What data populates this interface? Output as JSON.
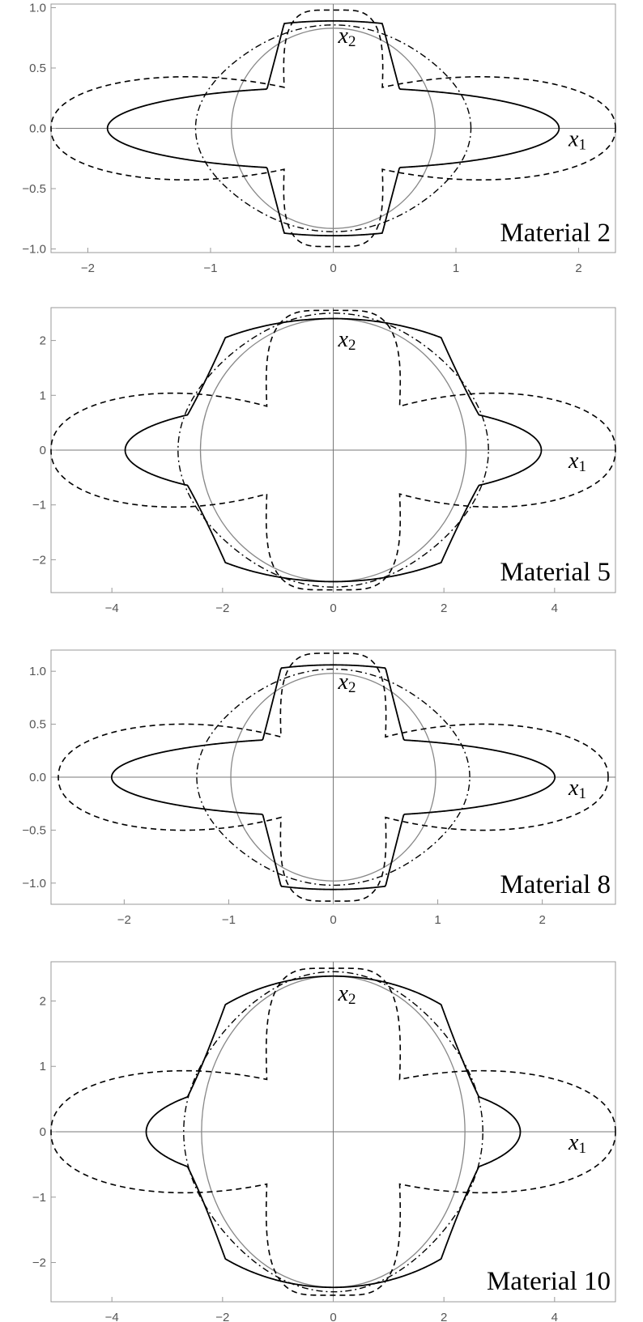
{
  "chart_data": [
    {
      "type": "line",
      "title": "Material 2",
      "xlabel": "x1",
      "ylabel": "x2",
      "xlim": [
        -2.3,
        2.3
      ],
      "ylim": [
        -1.03,
        1.03
      ],
      "xticks": [
        "−2",
        "−1",
        "0",
        "1",
        "2"
      ],
      "yticks": [
        "−1.0",
        "−0.5",
        "0.0",
        "0.5",
        "1.0"
      ],
      "xtick_values": [
        -2,
        -1,
        0,
        1,
        2
      ],
      "ytick_values": [
        -1.0,
        -0.5,
        0.0,
        0.5,
        1.0
      ],
      "series": [
        {
          "style": "gray-circle",
          "radius": 0.83
        },
        {
          "style": "solid",
          "xmax": 1.84,
          "ymax": 0.89,
          "neck": 0.34,
          "waist": 0.4
        },
        {
          "style": "dashed",
          "xmax": 2.3,
          "ymax": 0.98,
          "lobe": 0.49,
          "cusp_x": 0.4,
          "cusp_y": 0.34
        },
        {
          "style": "dashdot",
          "rx": 1.1,
          "ry": 0.84
        }
      ]
    },
    {
      "type": "line",
      "title": "Material 5",
      "xlabel": "x1",
      "ylabel": "x2",
      "xlim": [
        -5.1,
        5.1
      ],
      "ylim": [
        -2.6,
        2.6
      ],
      "xticks": [
        "−4",
        "−2",
        "0",
        "2",
        "4"
      ],
      "yticks": [
        "−2",
        "−1",
        "0",
        "1",
        "2"
      ],
      "xtick_values": [
        -4,
        -2,
        0,
        2,
        4
      ],
      "ytick_values": [
        -2,
        -1,
        0,
        1,
        2
      ],
      "series": [
        {
          "style": "gray-circle",
          "radius": 2.4
        },
        {
          "style": "solid",
          "xmax": 3.76,
          "ymax": 2.4,
          "neck": 0.9,
          "waist": 1.95
        },
        {
          "style": "dashed",
          "xmax": 5.1,
          "ymax": 2.55,
          "lobe": 1.2,
          "cusp_x": 1.2,
          "cusp_y": 0.8
        },
        {
          "style": "dashdot",
          "rx": 2.75,
          "ry": 2.45
        }
      ]
    },
    {
      "type": "line",
      "title": "Material 8",
      "xlabel": "x1",
      "ylabel": "x2",
      "xlim": [
        -2.7,
        2.7
      ],
      "ylim": [
        -1.2,
        1.2
      ],
      "xticks": [
        "−2",
        "−1",
        "0",
        "1",
        "2"
      ],
      "yticks": [
        "−1.0",
        "−0.5",
        "0.0",
        "0.5",
        "1.0"
      ],
      "xtick_values": [
        -2,
        -1,
        0,
        1,
        2
      ],
      "ytick_values": [
        -1.0,
        -0.5,
        0.0,
        0.5,
        1.0
      ],
      "series": [
        {
          "style": "gray-circle",
          "radius": 0.98
        },
        {
          "style": "solid",
          "xmax": 2.12,
          "ymax": 1.06,
          "neck": 0.37,
          "waist": 0.5
        },
        {
          "style": "dashed",
          "xmax": 2.63,
          "ymax": 1.17,
          "lobe": 0.58,
          "cusp_x": 0.5,
          "cusp_y": 0.38
        },
        {
          "style": "dashdot",
          "rx": 1.28,
          "ry": 1.0
        }
      ]
    },
    {
      "type": "line",
      "title": "Material 10",
      "xlabel": "x1",
      "ylabel": "x2",
      "xlim": [
        -5.1,
        5.1
      ],
      "ylim": [
        -2.6,
        2.6
      ],
      "xticks": [
        "−4",
        "−2",
        "0",
        "2",
        "4"
      ],
      "yticks": [
        "−2",
        "−1",
        "0",
        "1",
        "2"
      ],
      "xtick_values": [
        -4,
        -2,
        0,
        2,
        4
      ],
      "ytick_values": [
        -2,
        -1,
        0,
        1,
        2
      ],
      "series": [
        {
          "style": "gray-circle",
          "radius": 2.38
        },
        {
          "style": "solid",
          "xmax": 3.38,
          "ymax": 2.38,
          "neck": 0.85,
          "waist": 1.95
        },
        {
          "style": "dashed",
          "xmax": 5.1,
          "ymax": 2.5,
          "lobe": 1.05,
          "cusp_x": 1.2,
          "cusp_y": 0.8
        },
        {
          "style": "dashdot",
          "rx": 2.65,
          "ry": 2.4
        }
      ]
    }
  ]
}
